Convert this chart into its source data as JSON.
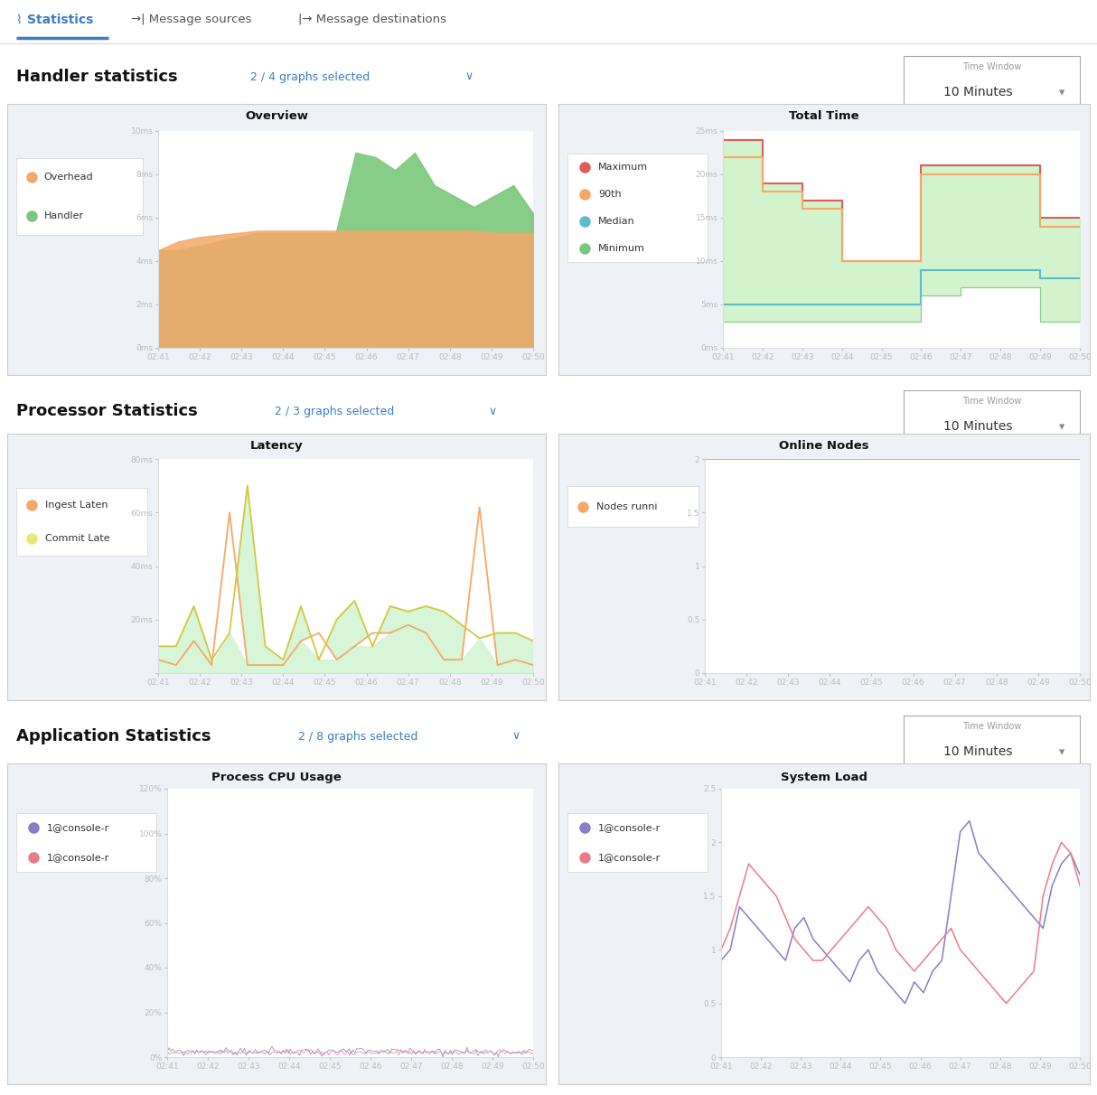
{
  "nav_items": [
    "Statistics",
    "Message sources",
    "Message destinations"
  ],
  "sections": [
    {
      "title": "Handler statistics",
      "subtitle": "2 / 4 graphs selected",
      "charts": [
        {
          "title": "Overview",
          "legend": [
            {
              "label": "Overhead",
              "color": "#f5a869"
            },
            {
              "label": "Handler",
              "color": "#7bc87a"
            }
          ],
          "ytick_labels": [
            "0ms",
            "2ms",
            "4ms",
            "6ms",
            "8ms",
            "10ms"
          ],
          "ytick_vals": [
            0,
            2,
            4,
            6,
            8,
            10
          ],
          "ymax": 10,
          "xticks": [
            "02:41",
            "02:42",
            "02:43",
            "02:44",
            "02:45",
            "02:46",
            "02:47",
            "02:48",
            "02:49",
            "02:50"
          ],
          "handler": [
            4.5,
            4.5,
            4.7,
            4.9,
            5.1,
            5.3,
            5.3,
            5.3,
            5.3,
            5.3,
            9.0,
            8.8,
            8.2,
            9.0,
            7.5,
            7.0,
            6.5,
            7.0,
            7.5,
            6.2
          ],
          "overhead": [
            4.5,
            4.9,
            5.1,
            5.2,
            5.3,
            5.4,
            5.4,
            5.4,
            5.4,
            5.4,
            5.4,
            5.4,
            5.4,
            5.4,
            5.4,
            5.4,
            5.4,
            5.3,
            5.3,
            5.3
          ]
        },
        {
          "title": "Total Time",
          "legend": [
            {
              "label": "Maximum",
              "color": "#e05c5c"
            },
            {
              "label": "90th",
              "color": "#f5a869"
            },
            {
              "label": "Median",
              "color": "#5bbccc"
            },
            {
              "label": "Minimum",
              "color": "#7bc87a"
            }
          ],
          "ytick_labels": [
            "0ms",
            "5ms",
            "10ms",
            "15ms",
            "20ms",
            "25ms"
          ],
          "ytick_vals": [
            0,
            5,
            10,
            15,
            20,
            25
          ],
          "ymax": 25,
          "xticks": [
            "02:41",
            "02:42",
            "02:43",
            "02:44",
            "02:45",
            "02:46",
            "02:47",
            "02:48",
            "02:49",
            "02:50"
          ],
          "maximum": [
            24,
            19,
            17,
            10,
            10,
            21,
            21,
            21,
            15,
            15
          ],
          "p90": [
            22,
            18,
            16,
            10,
            10,
            20,
            20,
            20,
            14,
            14
          ],
          "median": [
            5,
            5,
            5,
            5,
            5,
            9,
            9,
            9,
            8,
            8
          ],
          "minimum": [
            3,
            3,
            3,
            3,
            3,
            6,
            7,
            7,
            3,
            3
          ]
        }
      ]
    },
    {
      "title": "Processor Statistics",
      "subtitle": "2 / 3 graphs selected",
      "charts": [
        {
          "title": "Latency",
          "legend": [
            {
              "label": "Ingest Laten",
              "color": "#f5a869"
            },
            {
              "label": "Commit Late",
              "color": "#e8e87a"
            }
          ],
          "ytick_labels": [
            "",
            "20ms",
            "40ms",
            "60ms",
            "80ms"
          ],
          "ytick_vals": [
            0,
            20,
            40,
            60,
            80
          ],
          "ymax": 80,
          "xticks": [
            "02:41",
            "02:42",
            "02:43",
            "02:44",
            "02:45",
            "02:46",
            "02:47",
            "02:48",
            "02:49",
            "02:50"
          ],
          "ingest": [
            5,
            3,
            12,
            3,
            60,
            3,
            3,
            3,
            12,
            15,
            5,
            10,
            15,
            15,
            18,
            15,
            5,
            5,
            62,
            3,
            5,
            3
          ],
          "commit": [
            10,
            10,
            25,
            5,
            15,
            70,
            10,
            5,
            25,
            5,
            20,
            27,
            10,
            25,
            23,
            25,
            23,
            18,
            13,
            15,
            15,
            12
          ]
        },
        {
          "title": "Online Nodes",
          "legend": [
            {
              "label": "Nodes runni",
              "color": "#f5a869"
            }
          ],
          "ytick_labels": [
            "0",
            "0.5",
            "1",
            "1.5",
            "2"
          ],
          "ytick_vals": [
            0,
            0.5,
            1,
            1.5,
            2
          ],
          "ymax": 2,
          "xticks": [
            "02:41",
            "02:42",
            "02:43",
            "02:44",
            "02:45",
            "02:46",
            "02:47",
            "02:48",
            "02:49",
            "02:50"
          ],
          "nodes": [
            2,
            2,
            2,
            2,
            2,
            2,
            2,
            2,
            2,
            2,
            2,
            2,
            2,
            2
          ]
        }
      ]
    },
    {
      "title": "Application Statistics",
      "subtitle": "2 / 8 graphs selected",
      "charts": [
        {
          "title": "Process CPU Usage",
          "legend": [
            {
              "label": "1@console-r",
              "color": "#8b7cc8"
            },
            {
              "label": "1@console-r",
              "color": "#e87c8b"
            }
          ],
          "ytick_labels": [
            "0%",
            "20%",
            "40%",
            "60%",
            "80%",
            "100%",
            "120%"
          ],
          "ytick_vals": [
            0,
            20,
            40,
            60,
            80,
            100,
            120
          ],
          "ymax": 120,
          "xticks": [
            "02:41",
            "02:42",
            "02:43",
            "02:44",
            "02:45",
            "02:46",
            "02:47",
            "02:48",
            "02:49",
            "02:50"
          ]
        },
        {
          "title": "System Load",
          "legend": [
            {
              "label": "1@console-r",
              "color": "#8b7cc8"
            },
            {
              "label": "1@console-r",
              "color": "#e87c8b"
            }
          ],
          "ytick_labels": [
            "0",
            "0.5",
            "1",
            "1.5",
            "2",
            "2.5"
          ],
          "ytick_vals": [
            0,
            0.5,
            1,
            1.5,
            2,
            2.5
          ],
          "ymax": 2.5,
          "xticks": [
            "02:41",
            "02:42",
            "02:43",
            "02:44",
            "02:45",
            "02:46",
            "02:47",
            "02:48",
            "02:49",
            "02:50"
          ],
          "load1": [
            0.9,
            1.0,
            1.4,
            1.3,
            1.2,
            1.1,
            1.0,
            0.9,
            1.2,
            1.3,
            1.1,
            1.0,
            0.9,
            0.8,
            0.7,
            0.9,
            1.0,
            0.8,
            0.7,
            0.6,
            0.5,
            0.7,
            0.6,
            0.8,
            0.9,
            1.5,
            2.1,
            2.2,
            1.9,
            1.8,
            1.7,
            1.6,
            1.5,
            1.4,
            1.3,
            1.2,
            1.6,
            1.8,
            1.9,
            1.7
          ],
          "load2": [
            1.0,
            1.2,
            1.5,
            1.8,
            1.7,
            1.6,
            1.5,
            1.3,
            1.1,
            1.0,
            0.9,
            0.9,
            1.0,
            1.1,
            1.2,
            1.3,
            1.4,
            1.3,
            1.2,
            1.0,
            0.9,
            0.8,
            0.9,
            1.0,
            1.1,
            1.2,
            1.0,
            0.9,
            0.8,
            0.7,
            0.6,
            0.5,
            0.6,
            0.7,
            0.8,
            1.5,
            1.8,
            2.0,
            1.9,
            1.6
          ]
        }
      ]
    }
  ],
  "panel_bg": "#eef2f7",
  "white": "#ffffff",
  "border_color": "#cccccc",
  "text_dark": "#111111",
  "text_blue": "#3d7cc9",
  "text_gray": "#666666",
  "text_mid": "#444444"
}
